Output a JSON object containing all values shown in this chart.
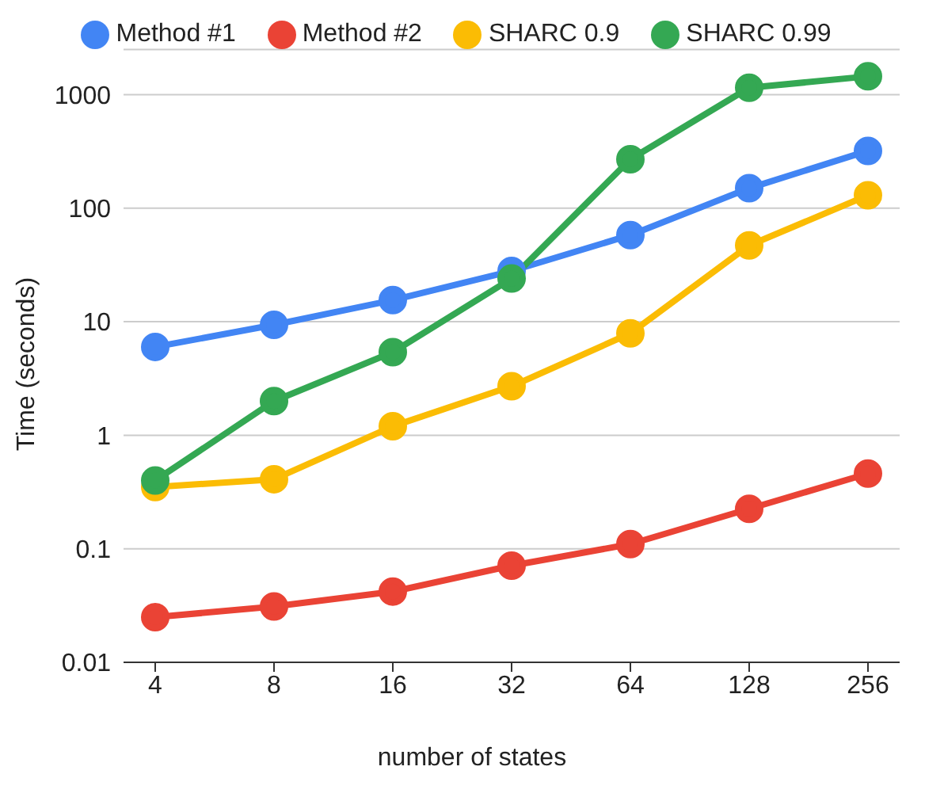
{
  "chart_data": {
    "type": "line",
    "xlabel": "number of states",
    "ylabel": "Time (seconds)",
    "categories": [
      "4",
      "8",
      "16",
      "32",
      "64",
      "128",
      "256"
    ],
    "series": [
      {
        "name": "Method #1",
        "color": "#4285f4",
        "values": [
          6.0,
          9.4,
          15.5,
          28,
          58,
          150,
          320
        ]
      },
      {
        "name": "Method #2",
        "color": "#ea4335",
        "values": [
          0.025,
          0.031,
          0.042,
          0.071,
          0.11,
          0.225,
          0.46
        ]
      },
      {
        "name": "SHARC 0.9",
        "color": "#fbbc04",
        "values": [
          0.35,
          0.41,
          1.2,
          2.7,
          7.9,
          47,
          130
        ]
      },
      {
        "name": "SHARC 0.99",
        "color": "#34a853",
        "values": [
          0.4,
          2.0,
          5.4,
          24,
          270,
          1150,
          1450
        ]
      }
    ],
    "log": "y",
    "ylim": [
      0.01,
      2500
    ],
    "yticks": [
      0.01,
      0.1,
      1,
      10,
      100,
      1000
    ],
    "grid": "y",
    "legend": "top",
    "marker": "circle",
    "line_style": "solid"
  }
}
